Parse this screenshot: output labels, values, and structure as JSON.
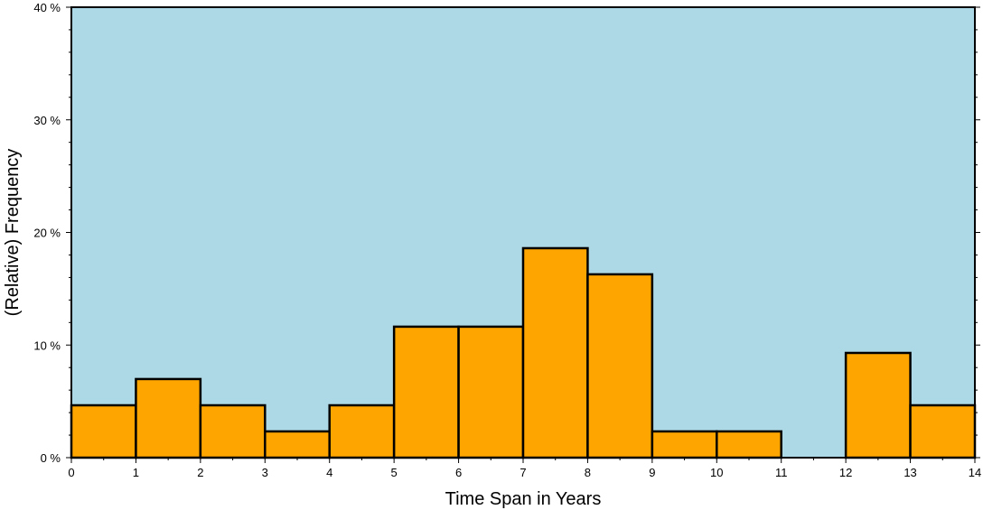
{
  "chart_data": {
    "type": "bar",
    "bins": [
      {
        "x0": 0,
        "x1": 1,
        "value": 4.65
      },
      {
        "x0": 1,
        "x1": 2,
        "value": 6.98
      },
      {
        "x0": 2,
        "x1": 3,
        "value": 4.65
      },
      {
        "x0": 3,
        "x1": 4,
        "value": 2.33
      },
      {
        "x0": 4,
        "x1": 5,
        "value": 4.65
      },
      {
        "x0": 5,
        "x1": 6,
        "value": 11.63
      },
      {
        "x0": 6,
        "x1": 7,
        "value": 11.63
      },
      {
        "x0": 7,
        "x1": 8,
        "value": 18.6
      },
      {
        "x0": 8,
        "x1": 9,
        "value": 16.28
      },
      {
        "x0": 9,
        "x1": 10,
        "value": 2.33
      },
      {
        "x0": 10,
        "x1": 11,
        "value": 2.33
      },
      {
        "x0": 11,
        "x1": 12,
        "value": 0
      },
      {
        "x0": 12,
        "x1": 13,
        "value": 9.3
      },
      {
        "x0": 13,
        "x1": 14,
        "value": 4.65
      }
    ],
    "xlabel": "Time Span in Years",
    "ylabel": "(Relative) Frequency",
    "xlim": [
      0,
      14
    ],
    "ylim": [
      0,
      40
    ],
    "x_ticks": [
      0,
      1,
      2,
      3,
      4,
      5,
      6,
      7,
      8,
      9,
      10,
      11,
      12,
      13,
      14
    ],
    "x_tick_labels": [
      "0",
      "1",
      "2",
      "3",
      "4",
      "5",
      "6",
      "7",
      "8",
      "9",
      "10",
      "11",
      "12",
      "13",
      "14"
    ],
    "y_ticks": [
      0,
      10,
      20,
      30,
      40
    ],
    "y_tick_labels": [
      "0 %",
      "10 %",
      "20 %",
      "30 %",
      "40 %"
    ],
    "y_minor_ticks": [
      0,
      2,
      4,
      6,
      8,
      10,
      12,
      14,
      16,
      18,
      20,
      22,
      24,
      26,
      28,
      30,
      32,
      34,
      36,
      38,
      40
    ],
    "grid": false,
    "colors": {
      "plot_background": "#add8e6",
      "bar_fill": "#ffa500",
      "bar_edge": "#000000",
      "axis": "#000000"
    }
  }
}
